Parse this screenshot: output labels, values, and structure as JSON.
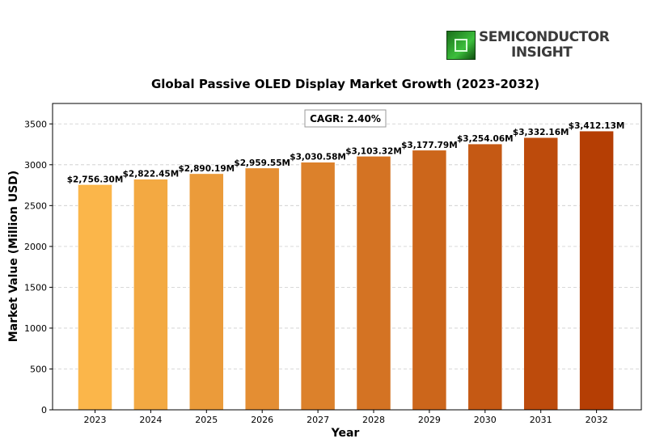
{
  "logo": {
    "line1": "SEMICONDUCTOR",
    "line2": "INSIGHT"
  },
  "colors": {
    "bar_start": "#fbb64a",
    "bar_end": "#b53e04",
    "grid": "#cccccc",
    "text": "#000000"
  },
  "chart_data": {
    "type": "bar",
    "title": "Global Passive OLED Display Market Growth (2023-2032)",
    "xlabel": "Year",
    "ylabel": "Market Value (Million USD)",
    "categories": [
      "2023",
      "2024",
      "2025",
      "2026",
      "2027",
      "2028",
      "2029",
      "2030",
      "2031",
      "2032"
    ],
    "values": [
      2756.3,
      2822.45,
      2890.19,
      2959.55,
      3030.58,
      3103.32,
      3177.79,
      3254.06,
      3332.16,
      3412.13
    ],
    "data_labels": [
      "$2,756.30M",
      "$2,822.45M",
      "$2,890.19M",
      "$2,959.55M",
      "$3,030.58M",
      "$3,103.32M",
      "$3,177.79M",
      "$3,254.06M",
      "$3,332.16M",
      "$3,412.13M"
    ],
    "ylim": [
      0,
      3750
    ],
    "yticks": [
      0,
      500,
      1000,
      1500,
      2000,
      2500,
      3000,
      3500
    ],
    "grid": true,
    "annotation": "CAGR: 2.40%"
  }
}
